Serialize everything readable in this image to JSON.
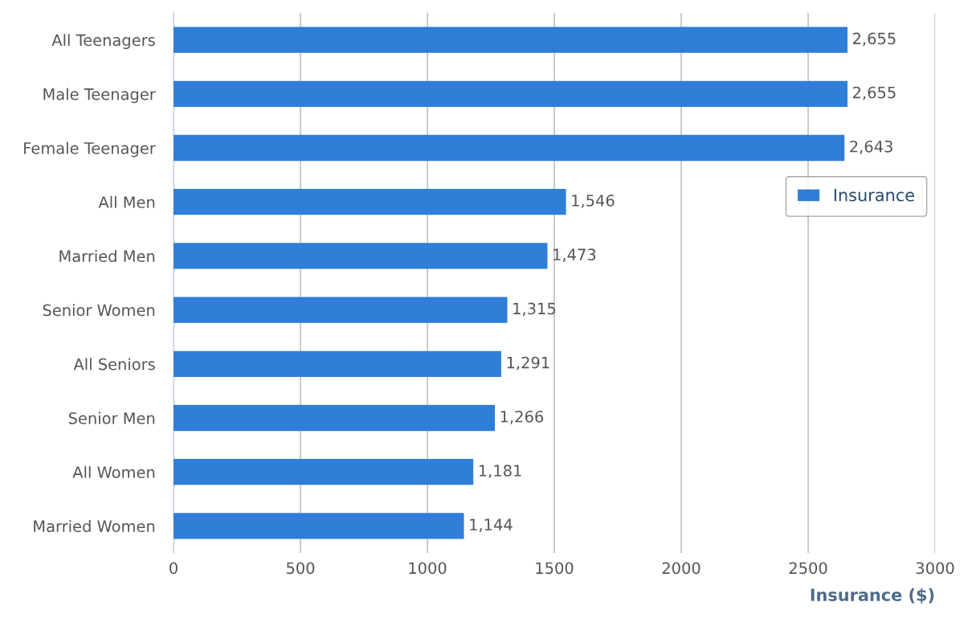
{
  "chart_data": {
    "type": "bar",
    "orientation": "horizontal",
    "xlabel": "Insurance ($)",
    "categories": [
      "All Teenagers",
      "Male Teenager",
      "Female Teenager",
      "All Men",
      "Married Men",
      "Senior Women",
      "All Seniors",
      "Senior Men",
      "All Women",
      "Married Women"
    ],
    "series": [
      {
        "name": "Insurance",
        "color": "#2f7ed8",
        "values": [
          2655,
          2655,
          2643,
          1546,
          1473,
          1315,
          1291,
          1266,
          1181,
          1144
        ],
        "value_labels": [
          "2,655",
          "2,655",
          "2,643",
          "1,546",
          "1,473",
          "1,315",
          "1,291",
          "1,266",
          "1,181",
          "1,144"
        ]
      }
    ],
    "xlim": [
      0,
      3000
    ],
    "xticks": [
      0,
      500,
      1000,
      1500,
      2000,
      2500,
      3000
    ],
    "grid": "x",
    "legend": "right"
  }
}
